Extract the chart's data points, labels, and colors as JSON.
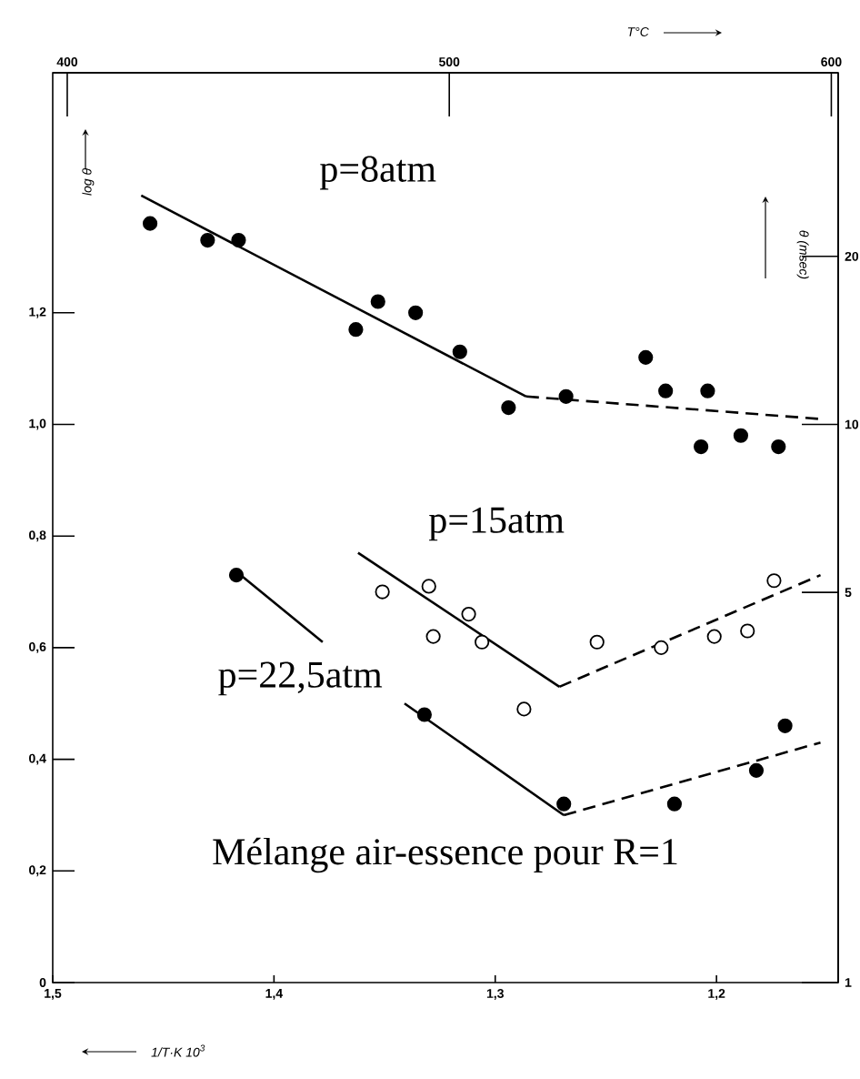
{
  "chart_data": {
    "type": "scatter",
    "xlabel": "1/T·K 10$^{3}$",
    "ylabel": "log θ",
    "y2label": "θ (msec)",
    "x2label": "T°C",
    "xlim": [
      1.5,
      1.145
    ],
    "xticks": [
      {
        "value": 1.5,
        "label": "1,5"
      },
      {
        "value": 1.4,
        "label": "1,4"
      },
      {
        "value": 1.3,
        "label": "1,3"
      },
      {
        "value": 1.2,
        "label": "1,2"
      }
    ],
    "ylim": [
      0,
      1.63
    ],
    "yticks": [
      0,
      {
        "value": 0.2,
        "label": "0,2"
      },
      {
        "value": 0.4,
        "label": "0,4"
      },
      {
        "value": 0.6,
        "label": "0,6"
      },
      {
        "value": 0.8,
        "label": "0,8"
      },
      {
        "value": 1.0,
        "label": "1,0"
      },
      {
        "value": 1.2,
        "label": "1,2"
      }
    ],
    "x2lim": [
      396.2,
      601.8
    ],
    "x2ticks": [
      400,
      500,
      600
    ],
    "y2lim": [
      1,
      42.66
    ],
    "y2ticks": [
      1,
      5,
      10,
      20
    ],
    "log": "y2",
    "marker": "circle",
    "grid": false,
    "annotations": [
      "Mélange air-essence pour R=1"
    ],
    "series": [
      {
        "name": "p=8atm",
        "type": "scatter",
        "color": "#000000",
        "x": [
          1.456,
          1.43,
          1.416,
          1.363,
          1.353,
          1.336,
          1.316,
          1.294,
          1.268,
          1.232,
          1.223,
          1.204,
          1.207,
          1.189,
          1.172
        ],
        "values": [
          1.36,
          1.33,
          1.33,
          1.17,
          1.22,
          1.2,
          1.13,
          1.03,
          1.05,
          1.12,
          1.06,
          1.06,
          0.96,
          0.98,
          0.96
        ]
      },
      {
        "type": "line",
        "color": "#000000",
        "marker": "none",
        "line_style": "solid",
        "x": [
          1.46,
          1.286
        ],
        "values": [
          1.41,
          1.05
        ]
      },
      {
        "type": "line",
        "color": "#000000",
        "marker": "none",
        "line_style": "dashed",
        "x": [
          1.286,
          1.154
        ],
        "values": [
          1.05,
          1.01
        ]
      },
      {
        "name": "p=15atm",
        "type": "scatter",
        "color": "#ffffff",
        "x": [
          1.351,
          1.33,
          1.328,
          1.312,
          1.306,
          1.287,
          1.254,
          1.225,
          1.201,
          1.186,
          1.174
        ],
        "values": [
          0.7,
          0.71,
          0.62,
          0.66,
          0.61,
          0.49,
          0.61,
          0.6,
          0.62,
          0.63,
          0.72
        ]
      },
      {
        "type": "line",
        "color": "#000000",
        "marker": "none",
        "line_style": "solid",
        "x": [
          1.362,
          1.271
        ],
        "values": [
          0.77,
          0.53
        ]
      },
      {
        "type": "line",
        "color": "#000000",
        "marker": "none",
        "line_style": "dashed",
        "x": [
          1.271,
          1.153
        ],
        "values": [
          0.53,
          0.73
        ]
      },
      {
        "name": "p=22,5atm",
        "type": "scatter",
        "color": "#000000",
        "x": [
          1.417,
          1.332,
          1.269,
          1.219,
          1.182,
          1.169
        ],
        "values": [
          0.73,
          0.48,
          0.32,
          0.32,
          0.38,
          0.46
        ]
      },
      {
        "type": "line",
        "color": "#000000",
        "marker": "none",
        "line_style": "solid",
        "x": [
          1.415,
          1.378,
          1.36,
          1.341,
          1.269
        ],
        "values": [
          0.73,
          0.61,
          null,
          0.5,
          0.3
        ]
      },
      {
        "type": "line",
        "color": "#000000",
        "marker": "none",
        "line_style": "dashed",
        "x": [
          1.269,
          1.153
        ],
        "values": [
          0.3,
          0.43
        ]
      }
    ]
  }
}
